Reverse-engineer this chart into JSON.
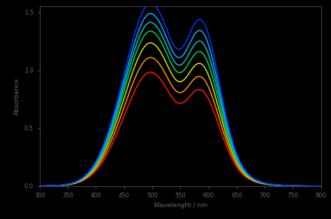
{
  "background_color": "#000000",
  "title": "",
  "xlabel": "Wavelength / nm",
  "ylabel": "Absorbance",
  "xlim": [
    300,
    800
  ],
  "ylim": [
    0,
    1.55
  ],
  "tick_color": "#666666",
  "label_color": "#666666",
  "line_colors": [
    "#ff1100",
    "#ff8800",
    "#ccdd00",
    "#00cc44",
    "#00bbbb",
    "#00aaff",
    "#0033ff"
  ],
  "peak1_amp_scale": [
    0.78,
    0.88,
    0.98,
    1.06,
    1.12,
    1.18,
    1.25
  ],
  "peak2_amp_scale": [
    0.42,
    0.48,
    0.54,
    0.6,
    0.66,
    0.72,
    0.78
  ],
  "figure_size": [
    4.74,
    3.14
  ],
  "dpi": 100
}
